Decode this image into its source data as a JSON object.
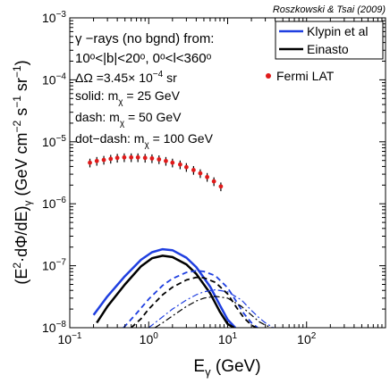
{
  "chart_data": {
    "type": "line",
    "credit": "Roszkowski & Tsai (2009)",
    "xlabel": {
      "main": "E",
      "sub": "γ",
      "units": " (GeV)"
    },
    "ylabel": {
      "pre": "(E",
      "sup2": "2",
      "mid": "·dΦ/dE)",
      "subg": "γ",
      "units": " (GeV cm",
      "supm2": "−2",
      "s": " s",
      "supm1a": "−1",
      "sr": " sr",
      "supm1b": "−1",
      "close": ")"
    },
    "xscale": "log",
    "yscale": "log",
    "xlim": [
      0.1,
      1000
    ],
    "ylim": [
      1e-08,
      0.001
    ],
    "x_ticks": [
      {
        "value": 0.1,
        "base": "10",
        "exp": "−1"
      },
      {
        "value": 1,
        "base": "10",
        "exp": "0"
      },
      {
        "value": 10,
        "base": "10",
        "exp": "1"
      },
      {
        "value": 100,
        "base": "10",
        "exp": "2"
      }
    ],
    "y_ticks": [
      {
        "value": 1e-08,
        "base": "10",
        "exp": "−8"
      },
      {
        "value": 1e-07,
        "base": "10",
        "exp": "−7"
      },
      {
        "value": 1e-06,
        "base": "10",
        "exp": "−6"
      },
      {
        "value": 1e-05,
        "base": "10",
        "exp": "−5"
      },
      {
        "value": 0.0001,
        "base": "10",
        "exp": "−4"
      },
      {
        "value": 0.001,
        "base": "10",
        "exp": "−3"
      }
    ],
    "annotations": {
      "line1": "γ −rays (no bgnd) from:",
      "line2": "10ᵒ<|b|<20ᵒ, 0ᵒ<l<360ᵒ",
      "line3a": "ΔΩ =3.45× 10",
      "line3sup": "−4",
      "line3b": " sr",
      "line4a": "solid: m",
      "line4sub": "χ",
      "line4b": " = 25 GeV",
      "line5a": "dash: m",
      "line5sub": "χ",
      "line5b": " = 50 GeV",
      "line6a": "dot−dash: m",
      "line6sub": "χ",
      "line6b": " = 100 GeV"
    },
    "legend": {
      "placement": "top-right",
      "items": [
        {
          "name": "Klypin et al",
          "color": "#1f3fe0"
        },
        {
          "name": "Einasto",
          "color": "#000000"
        }
      ],
      "points_label": "Fermi LAT",
      "points_color": "#e01a1a"
    },
    "series": [
      {
        "halo": "Klypin et al",
        "mass": "25 GeV",
        "style": "solid",
        "color": "#1f3fe0",
        "x": [
          0.2,
          0.3,
          0.5,
          0.8,
          1.1,
          1.5,
          2,
          3,
          4,
          6,
          8,
          10,
          12.5
        ],
        "y": [
          1.6e-08,
          3.2e-08,
          6.8e-08,
          1.25e-07,
          1.65e-07,
          1.85e-07,
          1.78e-07,
          1.35e-07,
          9.5e-08,
          4.6e-08,
          2.3e-08,
          1.35e-08,
          1e-08
        ]
      },
      {
        "halo": "Einasto",
        "mass": "25 GeV",
        "style": "solid",
        "color": "#000000",
        "x": [
          0.22,
          0.3,
          0.5,
          0.8,
          1.1,
          1.5,
          2,
          3,
          4,
          6,
          8,
          10,
          12
        ],
        "y": [
          1.2e-08,
          2.2e-08,
          5e-08,
          9.8e-08,
          1.32e-07,
          1.45e-07,
          1.38e-07,
          1.05e-07,
          7.4e-08,
          3.6e-08,
          1.8e-08,
          1.15e-08,
          1e-08
        ]
      },
      {
        "halo": "Klypin et al",
        "mass": "50 GeV",
        "style": "dash",
        "color": "#1f3fe0",
        "x": [
          0.48,
          0.7,
          1,
          1.5,
          2,
          3,
          4,
          5,
          7,
          10,
          13,
          16,
          20,
          24
        ],
        "y": [
          1e-08,
          1.7e-08,
          2.9e-08,
          4.8e-08,
          6.2e-08,
          7.8e-08,
          8.3e-08,
          8.1e-08,
          6.9e-08,
          4.4e-08,
          2.6e-08,
          1.7e-08,
          1.2e-08,
          1e-08
        ]
      },
      {
        "halo": "Einasto",
        "mass": "50 GeV",
        "style": "dash",
        "color": "#000000",
        "x": [
          0.6,
          0.8,
          1,
          1.5,
          2,
          3,
          4,
          5,
          7,
          10,
          13,
          16,
          20,
          23
        ],
        "y": [
          1e-08,
          1.4e-08,
          2e-08,
          3.4e-08,
          4.5e-08,
          5.9e-08,
          6.5e-08,
          6.4e-08,
          5.4e-08,
          3.5e-08,
          2.1e-08,
          1.45e-08,
          1.1e-08,
          1e-08
        ]
      },
      {
        "halo": "Klypin et al",
        "mass": "100 GeV",
        "style": "dash-dot",
        "color": "#1f3fe0",
        "x": [
          1,
          1.5,
          2,
          3,
          4,
          5,
          7,
          10,
          15,
          20,
          25,
          30,
          38
        ],
        "y": [
          1e-08,
          1.5e-08,
          2e-08,
          2.8e-08,
          3.4e-08,
          3.8e-08,
          4.1e-08,
          3.8e-08,
          2.8e-08,
          1.9e-08,
          1.45e-08,
          1.2e-08,
          1e-08
        ]
      },
      {
        "halo": "Einasto",
        "mass": "100 GeV",
        "style": "dash-dot",
        "color": "#000000",
        "x": [
          1.2,
          1.5,
          2,
          3,
          4,
          5,
          7,
          10,
          15,
          20,
          25,
          30,
          36
        ],
        "y": [
          1e-08,
          1.2e-08,
          1.55e-08,
          2.2e-08,
          2.7e-08,
          3e-08,
          3.2e-08,
          3e-08,
          2.2e-08,
          1.6e-08,
          1.25e-08,
          1.1e-08,
          1e-08
        ]
      }
    ],
    "fermi_points": {
      "name": "Fermi LAT",
      "color": "#e01a1a",
      "x": [
        0.18,
        0.22,
        0.27,
        0.33,
        0.4,
        0.49,
        0.6,
        0.73,
        0.9,
        1.1,
        1.35,
        1.65,
        2.0,
        2.5,
        3.0,
        3.7,
        4.5,
        5.5,
        6.7,
        8.2
      ],
      "y": [
        4.6e-06,
        4.9e-06,
        5.1e-06,
        5.3e-06,
        5.5e-06,
        5.6e-06,
        5.6e-06,
        5.6e-06,
        5.5e-06,
        5.4e-06,
        5.2e-06,
        4.9e-06,
        4.6e-06,
        4.3e-06,
        3.9e-06,
        3.5e-06,
        3.1e-06,
        2.7e-06,
        2.3e-06,
        1.9e-06
      ],
      "y_err_frac": 0.16
    }
  }
}
